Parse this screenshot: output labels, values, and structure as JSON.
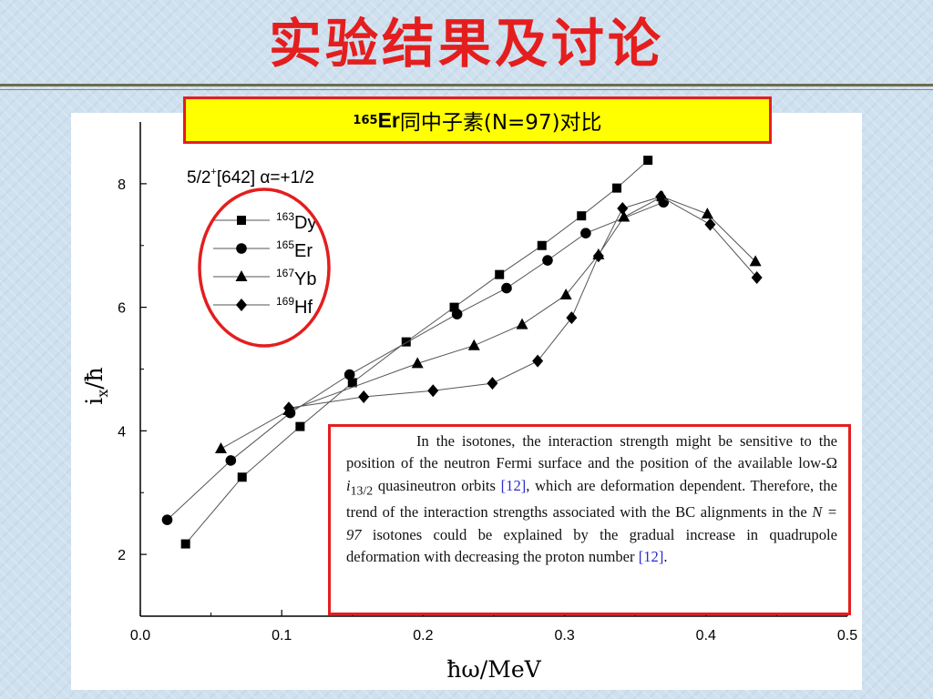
{
  "title": "实验结果及讨论",
  "subtitle": {
    "mass": "165",
    "element": "Er",
    "text": "同中子素(N=97)对比"
  },
  "chart_data": {
    "type": "line",
    "annotation": {
      "base": "5/2",
      "sup": "+",
      "rest": "[642] α=+1/2"
    },
    "xlabel": "ħω/MeV",
    "ylabel": "ix/ħ",
    "xlim": [
      0.0,
      0.5
    ],
    "ylim": [
      1.0,
      9.0
    ],
    "xticks": [
      0.0,
      0.1,
      0.2,
      0.3,
      0.4,
      0.5
    ],
    "xtick_labels": [
      "0.0",
      "0.1",
      "0.2",
      "0.3",
      "0.4",
      "0.5"
    ],
    "yticks": [
      2,
      4,
      6,
      8
    ],
    "ytick_labels": [
      "2",
      "4",
      "6",
      "8"
    ],
    "legend_placement": "top-left",
    "grid": false,
    "series": [
      {
        "name": "163Dy",
        "mass": "163",
        "element": "Dy",
        "marker": "square",
        "x": [
          0.032,
          0.072,
          0.113,
          0.15,
          0.188,
          0.222,
          0.254,
          0.284,
          0.312,
          0.337,
          0.359
        ],
        "y": [
          2.17,
          3.25,
          4.07,
          4.78,
          5.44,
          6.0,
          6.53,
          7.0,
          7.48,
          7.93,
          8.38
        ]
      },
      {
        "name": "165Er",
        "mass": "165",
        "element": "Er",
        "marker": "circle",
        "x": [
          0.019,
          0.064,
          0.106,
          0.148,
          0.224,
          0.259,
          0.288,
          0.315,
          0.37
        ],
        "y": [
          2.56,
          3.52,
          4.29,
          4.91,
          5.89,
          6.31,
          6.76,
          7.2,
          7.7
        ]
      },
      {
        "name": "167Yb",
        "mass": "167",
        "element": "Yb",
        "marker": "triangle",
        "x": [
          0.057,
          0.105,
          0.196,
          0.236,
          0.27,
          0.301,
          0.324,
          0.342,
          0.369,
          0.401,
          0.435
        ],
        "y": [
          3.71,
          4.33,
          5.09,
          5.38,
          5.72,
          6.2,
          6.85,
          7.46,
          7.79,
          7.51,
          6.74
        ]
      },
      {
        "name": "169Hf",
        "mass": "169",
        "element": "Hf",
        "marker": "diamond",
        "x": [
          0.105,
          0.158,
          0.207,
          0.249,
          0.281,
          0.305,
          0.324,
          0.341,
          0.368,
          0.403,
          0.436
        ],
        "y": [
          4.37,
          4.55,
          4.65,
          4.77,
          5.13,
          5.83,
          6.83,
          7.6,
          7.79,
          7.34,
          6.48
        ]
      }
    ]
  },
  "quote": {
    "part1": "In the isotones, the interaction strength might be sensitive to the position of the neutron Fermi surface and the position of the available low-Ω ",
    "orbit": "i",
    "orbit_sub": "13/2",
    "part2": " quasineutron orbits ",
    "cite1": "[12]",
    "part3": ", which are deformation dependent. Therefore, the trend of the interaction strengths associated with the BC alignments in the ",
    "n_expr": "N = 97",
    "part4": " isotones could be explained by the gradual increase in quadrupole deformation with decreasing the proton number ",
    "cite2": "[12]",
    "part5": "."
  },
  "colors": {
    "title": "#e41e1e",
    "highlight_border": "#e41e1e",
    "subtitle_bg": "#ffff00",
    "citation": "#2a2ad0"
  }
}
